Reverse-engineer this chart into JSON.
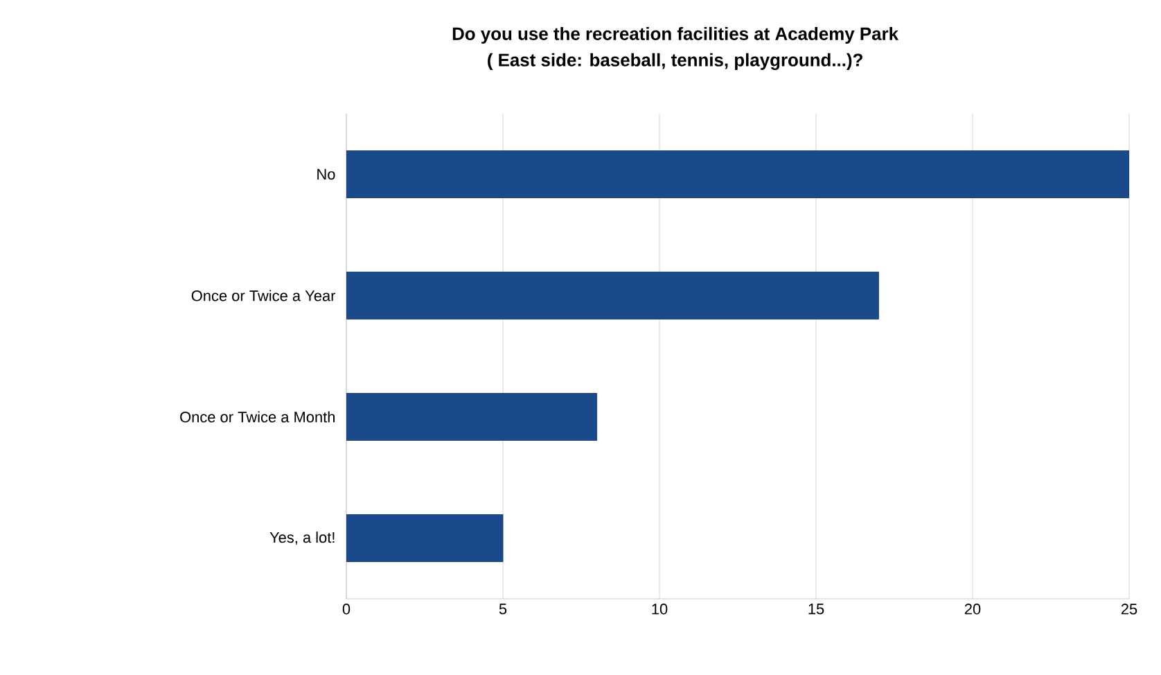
{
  "chart_data": {
    "type": "bar",
    "orientation": "horizontal",
    "title": "Do you use the recreation facilities at Academy Park\n( East side: baseball, tennis, playground...)?",
    "categories": [
      "No",
      "Once or Twice a Year",
      "Once or Twice a Month",
      "Yes, a lot!"
    ],
    "values": [
      25,
      17,
      8,
      5
    ],
    "color": "#1a4a8c",
    "xlim": [
      0,
      25
    ],
    "xticks": [
      0,
      5,
      10,
      15,
      20,
      25
    ],
    "grid": "x"
  }
}
